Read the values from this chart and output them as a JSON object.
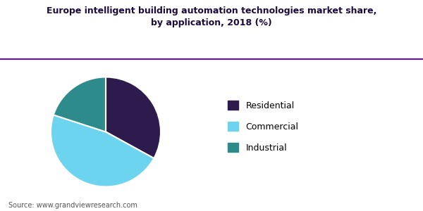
{
  "title": "Europe intelligent building automation technologies market share,\nby application, 2018 (%)",
  "labels": [
    "Residential",
    "Commercial",
    "Industrial"
  ],
  "sizes": [
    33,
    47,
    20
  ],
  "colors": [
    "#2d1b4e",
    "#6dd4f0",
    "#2e8b8b"
  ],
  "legend_labels": [
    "Residential",
    "Commercial",
    "Industrial"
  ],
  "source_text": "Source: www.grandviewresearch.com",
  "title_color": "#1a0a3d",
  "background_color": "#ffffff",
  "line_color": "#6a0dad",
  "source_color": "#555555",
  "startangle": 90
}
